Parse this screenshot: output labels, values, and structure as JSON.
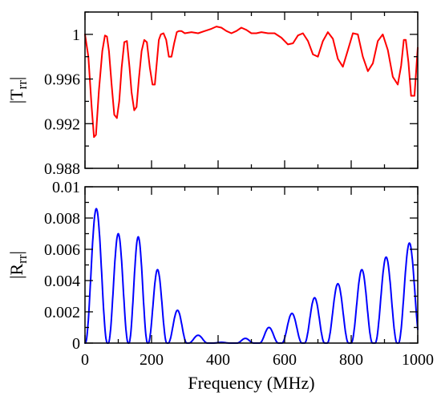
{
  "chart_data": [
    {
      "type": "line",
      "ylabel_main": "|T",
      "ylabel_sub": "rr",
      "ylabel_close": "|",
      "xlim": [
        0,
        1000
      ],
      "ylim": [
        0.988,
        1.002
      ],
      "x_ticks": [
        0,
        200,
        400,
        600,
        800,
        1000
      ],
      "x_minor_ticks": [
        100,
        300,
        500,
        700,
        900
      ],
      "y_ticks": [
        {
          "value": 0.988,
          "label": "0.988"
        },
        {
          "value": 0.992,
          "label": "0.992"
        },
        {
          "value": 0.996,
          "label": "0.996"
        },
        {
          "value": 1.0,
          "label": "1"
        }
      ],
      "y_minor_ticks": [
        0.99,
        0.994,
        0.998,
        1.002
      ],
      "grid": false,
      "series": [
        {
          "color": "#ff0000",
          "x": [
            0,
            10,
            20,
            27,
            33,
            42,
            52,
            60,
            66,
            72,
            80,
            88,
            96,
            103,
            110,
            118,
            126,
            134,
            140,
            148,
            155,
            162,
            170,
            178,
            186,
            195,
            203,
            210,
            216,
            222,
            228,
            236,
            244,
            252,
            260,
            268,
            276,
            282,
            290,
            300,
            320,
            340,
            360,
            380,
            395,
            410,
            425,
            440,
            455,
            470,
            485,
            500,
            515,
            530,
            550,
            570,
            590,
            610,
            625,
            640,
            655,
            670,
            685,
            700,
            715,
            730,
            745,
            760,
            775,
            790,
            805,
            820,
            835,
            850,
            865,
            880,
            895,
            910,
            925,
            940,
            950,
            958,
            964,
            972,
            980,
            990,
            1000
          ],
          "y": [
            1.0,
            0.998,
            0.9935,
            0.9908,
            0.991,
            0.995,
            0.9985,
            0.9999,
            0.9998,
            0.9985,
            0.9955,
            0.9928,
            0.9925,
            0.994,
            0.997,
            0.9993,
            0.9994,
            0.997,
            0.9948,
            0.9932,
            0.9935,
            0.996,
            0.9985,
            0.9995,
            0.9993,
            0.997,
            0.9955,
            0.9955,
            0.9975,
            0.9995,
            1.0,
            1.0001,
            0.9995,
            0.998,
            0.998,
            0.9992,
            1.0002,
            1.0003,
            1.0003,
            1.0001,
            1.0002,
            1.0001,
            1.0003,
            1.0005,
            1.0007,
            1.0006,
            1.0003,
            1.0001,
            1.0003,
            1.0006,
            1.0004,
            1.0001,
            1.0001,
            1.0002,
            1.0001,
            1.0001,
            0.9997,
            0.9991,
            0.9992,
            0.9999,
            1.0001,
            0.9994,
            0.9982,
            0.998,
            0.9994,
            1.0002,
            0.9996,
            0.9978,
            0.9971,
            0.9986,
            1.0001,
            1.0,
            0.998,
            0.9967,
            0.9974,
            0.9994,
            1.0,
            0.9986,
            0.9962,
            0.9955,
            0.9972,
            0.9995,
            0.9995,
            0.9975,
            0.9945,
            0.9945,
            0.9988
          ]
        }
      ]
    },
    {
      "type": "line",
      "xlabel": "Frequency (MHz)",
      "ylabel_main": "|R",
      "ylabel_sub": "rr",
      "ylabel_close": "|",
      "xlim": [
        0,
        1000
      ],
      "ylim": [
        0,
        0.01
      ],
      "x_ticks": [
        {
          "value": 0,
          "label": "0"
        },
        {
          "value": 200,
          "label": "200"
        },
        {
          "value": 400,
          "label": "400"
        },
        {
          "value": 600,
          "label": "600"
        },
        {
          "value": 800,
          "label": "800"
        },
        {
          "value": 1000,
          "label": "1000"
        }
      ],
      "x_minor_ticks": [
        100,
        300,
        500,
        700,
        900
      ],
      "y_ticks": [
        {
          "value": 0,
          "label": "0"
        },
        {
          "value": 0.002,
          "label": "0.002"
        },
        {
          "value": 0.004,
          "label": "0.004"
        },
        {
          "value": 0.006,
          "label": "0.006"
        },
        {
          "value": 0.008,
          "label": "0.008"
        },
        {
          "value": 0.01,
          "label": "0.01"
        }
      ],
      "y_minor_ticks": [
        0.001,
        0.003,
        0.005,
        0.007,
        0.009
      ],
      "grid": false,
      "series": [
        {
          "color": "#0000ff",
          "peaks": [
            {
              "x": 34,
              "y": 0.0086,
              "half_width": 33
            },
            {
              "x": 100,
              "y": 0.007,
              "half_width": 30
            },
            {
              "x": 160,
              "y": 0.0068,
              "half_width": 28
            },
            {
              "x": 218,
              "y": 0.0047,
              "half_width": 28
            },
            {
              "x": 278,
              "y": 0.0021,
              "half_width": 28
            },
            {
              "x": 340,
              "y": 0.0005,
              "half_width": 28
            },
            {
              "x": 410,
              "y": 5e-05,
              "half_width": 25
            },
            {
              "x": 482,
              "y": 0.0003,
              "half_width": 25
            },
            {
              "x": 553,
              "y": 0.001,
              "half_width": 28
            },
            {
              "x": 622,
              "y": 0.0019,
              "half_width": 30
            },
            {
              "x": 690,
              "y": 0.0029,
              "half_width": 30
            },
            {
              "x": 760,
              "y": 0.0038,
              "half_width": 32
            },
            {
              "x": 832,
              "y": 0.0047,
              "half_width": 32
            },
            {
              "x": 905,
              "y": 0.0055,
              "half_width": 33
            },
            {
              "x": 975,
              "y": 0.0064,
              "half_width": 33
            }
          ]
        }
      ]
    }
  ]
}
